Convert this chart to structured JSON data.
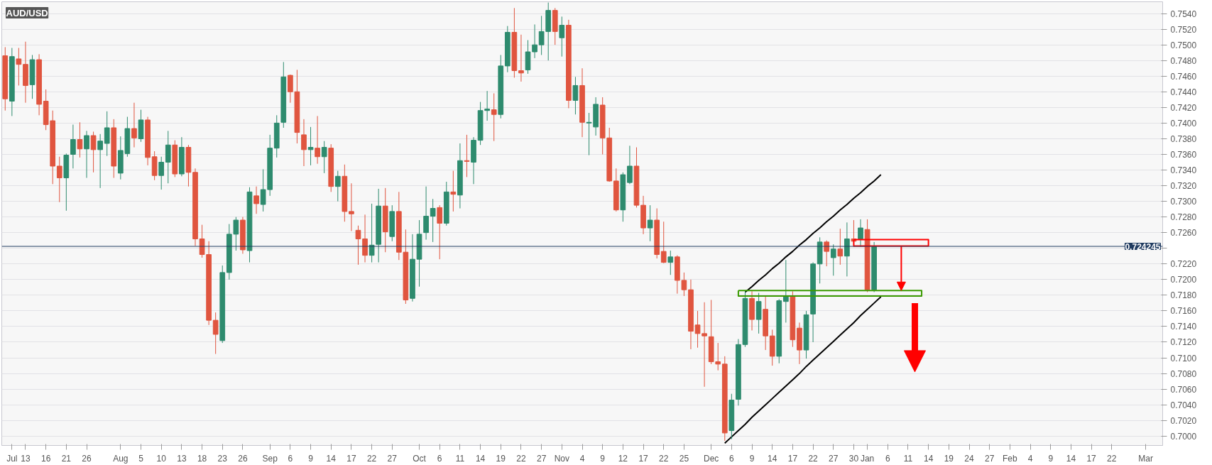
{
  "chart_data": {
    "type": "candlestick",
    "title": "AUD/USD",
    "categories": [
      null,
      "Jul",
      null,
      "13",
      null,
      null,
      "16",
      null,
      null,
      "21",
      null,
      null,
      "26",
      null,
      null,
      null,
      null,
      "Aug",
      null,
      null,
      "5",
      null,
      null,
      "10",
      null,
      null,
      "13",
      null,
      null,
      "18",
      null,
      null,
      "23",
      null,
      null,
      "26",
      null,
      null,
      null,
      "Sep",
      null,
      null,
      "6",
      null,
      null,
      "9",
      null,
      null,
      "14",
      null,
      null,
      "17",
      null,
      null,
      "22",
      null,
      null,
      "27",
      null,
      null,
      null,
      "Oct",
      null,
      null,
      "6",
      null,
      null,
      "11",
      null,
      null,
      "14",
      null,
      null,
      "19",
      null,
      null,
      "22",
      null,
      null,
      "27",
      null,
      null,
      "Nov",
      null,
      null,
      "4",
      null,
      null,
      "9",
      null,
      null,
      "12",
      null,
      null,
      "17",
      null,
      null,
      "22",
      null,
      null,
      "25",
      null,
      null,
      null,
      "Dec",
      null,
      null,
      "6",
      null,
      null,
      "9",
      null,
      null,
      "14",
      null,
      null,
      "17",
      null,
      null,
      "22",
      null,
      null,
      "27",
      null,
      null,
      "30",
      null,
      "Jan",
      null,
      null,
      "6",
      null,
      null,
      "11",
      null,
      null,
      "14",
      null,
      null,
      "19",
      null,
      null,
      "24",
      null,
      null,
      "27",
      null,
      null,
      "Feb",
      null,
      null,
      "4",
      null,
      null,
      "9",
      null,
      null,
      "14",
      null,
      null,
      "17",
      null,
      null,
      "22",
      null,
      null,
      null,
      null,
      "Mar",
      null,
      null
    ],
    "ohlc": [
      [
        0.7486,
        0.7497,
        0.7416,
        0.7431
      ],
      [
        0.7428,
        0.7496,
        0.7409,
        0.7485
      ],
      [
        0.7482,
        0.7496,
        0.7448,
        0.7475
      ],
      [
        0.7475,
        0.7504,
        0.7426,
        0.7448
      ],
      [
        0.7449,
        0.7487,
        0.7431,
        0.7481
      ],
      [
        0.7481,
        0.7488,
        0.741,
        0.7424
      ],
      [
        0.7428,
        0.7443,
        0.7391,
        0.7398
      ],
      [
        0.7403,
        0.7416,
        0.7322,
        0.7345
      ],
      [
        0.7345,
        0.7357,
        0.7299,
        0.733
      ],
      [
        0.733,
        0.7361,
        0.7288,
        0.7359
      ],
      [
        0.736,
        0.7398,
        0.7342,
        0.7379
      ],
      [
        0.7379,
        0.7401,
        0.7356,
        0.7367
      ],
      [
        0.7367,
        0.739,
        0.733,
        0.7384
      ],
      [
        0.7384,
        0.7389,
        0.7337,
        0.7366
      ],
      [
        0.7366,
        0.7386,
        0.7317,
        0.7377
      ],
      [
        0.7374,
        0.7415,
        0.7358,
        0.7394
      ],
      [
        0.7394,
        0.7405,
        0.733,
        0.7345
      ],
      [
        0.7336,
        0.7383,
        0.7328,
        0.7365
      ],
      [
        0.7361,
        0.7408,
        0.7357,
        0.7393
      ],
      [
        0.7393,
        0.7426,
        0.7369,
        0.7381
      ],
      [
        0.738,
        0.7417,
        0.7376,
        0.7404
      ],
      [
        0.7404,
        0.7408,
        0.7346,
        0.7356
      ],
      [
        0.7357,
        0.7364,
        0.7327,
        0.7333
      ],
      [
        0.7333,
        0.7357,
        0.7315,
        0.735
      ],
      [
        0.735,
        0.739,
        0.7323,
        0.7372
      ],
      [
        0.7372,
        0.7378,
        0.7331,
        0.7335
      ],
      [
        0.7335,
        0.7382,
        0.7332,
        0.7369
      ],
      [
        0.7369,
        0.7372,
        0.7319,
        0.7337
      ],
      [
        0.7337,
        0.7342,
        0.7243,
        0.7252
      ],
      [
        0.7252,
        0.727,
        0.7228,
        0.7232
      ],
      [
        0.7232,
        0.7249,
        0.7142,
        0.7148
      ],
      [
        0.7148,
        0.7158,
        0.7105,
        0.713
      ],
      [
        0.7122,
        0.7218,
        0.7119,
        0.7209
      ],
      [
        0.7209,
        0.7271,
        0.72,
        0.7258
      ],
      [
        0.7258,
        0.728,
        0.7237,
        0.7276
      ],
      [
        0.7276,
        0.728,
        0.7233,
        0.7238
      ],
      [
        0.7237,
        0.7318,
        0.7222,
        0.7312
      ],
      [
        0.7307,
        0.7319,
        0.7284,
        0.7297
      ],
      [
        0.7296,
        0.7341,
        0.7287,
        0.7315
      ],
      [
        0.7315,
        0.7385,
        0.7307,
        0.7368
      ],
      [
        0.7368,
        0.741,
        0.7356,
        0.74
      ],
      [
        0.7401,
        0.7478,
        0.7394,
        0.7459
      ],
      [
        0.7461,
        0.7462,
        0.7426,
        0.744
      ],
      [
        0.744,
        0.7468,
        0.7374,
        0.7388
      ],
      [
        0.7385,
        0.7405,
        0.7345,
        0.7366
      ],
      [
        0.7366,
        0.7395,
        0.7346,
        0.7369
      ],
      [
        0.7368,
        0.7409,
        0.7348,
        0.7357
      ],
      [
        0.7357,
        0.7377,
        0.7336,
        0.7369
      ],
      [
        0.7368,
        0.7373,
        0.7312,
        0.7319
      ],
      [
        0.7319,
        0.7339,
        0.73,
        0.7332
      ],
      [
        0.7332,
        0.7347,
        0.7274,
        0.7287
      ],
      [
        0.7287,
        0.7323,
        0.7262,
        0.7284
      ],
      [
        0.7263,
        0.7269,
        0.7219,
        0.7252
      ],
      [
        0.7252,
        0.7283,
        0.7222,
        0.7231
      ],
      [
        0.7231,
        0.7297,
        0.7222,
        0.7244
      ],
      [
        0.7245,
        0.7316,
        0.7222,
        0.7294
      ],
      [
        0.7294,
        0.7317,
        0.7235,
        0.7261
      ],
      [
        0.7255,
        0.7295,
        0.7249,
        0.7287
      ],
      [
        0.7287,
        0.7312,
        0.7225,
        0.7235
      ],
      [
        0.7235,
        0.7264,
        0.7169,
        0.7174
      ],
      [
        0.7176,
        0.7258,
        0.7172,
        0.7226
      ],
      [
        0.7226,
        0.7276,
        0.7191,
        0.7258
      ],
      [
        0.726,
        0.7319,
        0.7251,
        0.7281
      ],
      [
        0.7281,
        0.7303,
        0.7248,
        0.7291
      ],
      [
        0.7292,
        0.7295,
        0.7226,
        0.7272
      ],
      [
        0.7272,
        0.7325,
        0.7269,
        0.7312
      ],
      [
        0.7312,
        0.7339,
        0.7287,
        0.7309
      ],
      [
        0.7308,
        0.7374,
        0.7291,
        0.7352
      ],
      [
        0.7352,
        0.7385,
        0.7331,
        0.7351
      ],
      [
        0.735,
        0.7382,
        0.7322,
        0.7378
      ],
      [
        0.7378,
        0.7427,
        0.7372,
        0.7416
      ],
      [
        0.7416,
        0.7441,
        0.7403,
        0.7418
      ],
      [
        0.7417,
        0.7438,
        0.7377,
        0.7411
      ],
      [
        0.7411,
        0.7487,
        0.7406,
        0.7473
      ],
      [
        0.7473,
        0.7524,
        0.7465,
        0.7516
      ],
      [
        0.7516,
        0.7547,
        0.7458,
        0.7467
      ],
      [
        0.7467,
        0.7513,
        0.7453,
        0.7464
      ],
      [
        0.7468,
        0.7506,
        0.7463,
        0.7491
      ],
      [
        0.7491,
        0.7526,
        0.7483,
        0.75
      ],
      [
        0.75,
        0.7537,
        0.7487,
        0.7517
      ],
      [
        0.7517,
        0.7554,
        0.748,
        0.7544
      ],
      [
        0.7544,
        0.7547,
        0.75,
        0.7517
      ],
      [
        0.7509,
        0.7536,
        0.7485,
        0.7525
      ],
      [
        0.7525,
        0.7532,
        0.7419,
        0.7429
      ],
      [
        0.7429,
        0.7459,
        0.7411,
        0.7448
      ],
      [
        0.7448,
        0.747,
        0.7382,
        0.7401
      ],
      [
        0.74,
        0.7413,
        0.7359,
        0.7401
      ],
      [
        0.7395,
        0.7433,
        0.7384,
        0.7424
      ],
      [
        0.7423,
        0.7433,
        0.736,
        0.7381
      ],
      [
        0.7381,
        0.7394,
        0.7325,
        0.7326
      ],
      [
        0.7326,
        0.7342,
        0.7287,
        0.7289
      ],
      [
        0.7289,
        0.7337,
        0.7274,
        0.7334
      ],
      [
        0.7324,
        0.7371,
        0.7322,
        0.7345
      ],
      [
        0.7345,
        0.7369,
        0.7292,
        0.7295
      ],
      [
        0.7295,
        0.7307,
        0.7258,
        0.7266
      ],
      [
        0.7266,
        0.7295,
        0.7249,
        0.7276
      ],
      [
        0.7276,
        0.7291,
        0.7227,
        0.7232
      ],
      [
        0.7236,
        0.7274,
        0.7221,
        0.7222
      ],
      [
        0.7222,
        0.7237,
        0.7206,
        0.7229
      ],
      [
        0.7229,
        0.7231,
        0.7182,
        0.7199
      ],
      [
        0.7199,
        0.7209,
        0.7179,
        0.7187
      ],
      [
        0.7187,
        0.72,
        0.7111,
        0.7134
      ],
      [
        0.7142,
        0.716,
        0.7113,
        0.7131
      ],
      [
        0.7131,
        0.7171,
        0.7063,
        0.7128
      ],
      [
        0.7127,
        0.7174,
        0.7092,
        0.7095
      ],
      [
        0.7095,
        0.7119,
        0.7084,
        0.7092
      ],
      [
        0.7092,
        0.7102,
        0.6994,
        0.7004
      ],
      [
        0.7007,
        0.7054,
        0.6996,
        0.7046
      ],
      [
        0.7047,
        0.7124,
        0.7039,
        0.7117
      ],
      [
        0.7117,
        0.7185,
        0.7114,
        0.7176
      ],
      [
        0.7176,
        0.7185,
        0.7135,
        0.7149
      ],
      [
        0.7149,
        0.7183,
        0.7131,
        0.7172
      ],
      [
        0.7162,
        0.7178,
        0.711,
        0.7128
      ],
      [
        0.7128,
        0.7136,
        0.709,
        0.7102
      ],
      [
        0.7102,
        0.7175,
        0.7093,
        0.7173
      ],
      [
        0.7172,
        0.7225,
        0.7145,
        0.7178
      ],
      [
        0.7178,
        0.7185,
        0.7114,
        0.7123
      ],
      [
        0.7138,
        0.7145,
        0.7092,
        0.711
      ],
      [
        0.711,
        0.716,
        0.7099,
        0.7155
      ],
      [
        0.7156,
        0.7222,
        0.712,
        0.722
      ],
      [
        0.722,
        0.7254,
        0.7195,
        0.7248
      ],
      [
        0.7248,
        0.725,
        0.7217,
        0.7236
      ],
      [
        0.7228,
        0.7245,
        0.7205,
        0.7239
      ],
      [
        0.7239,
        0.7265,
        0.7219,
        0.723
      ],
      [
        0.723,
        0.7273,
        0.7204,
        0.7252
      ],
      [
        0.7252,
        0.7276,
        0.7242,
        0.7249
      ],
      [
        0.7252,
        0.7277,
        0.7242,
        0.7266
      ],
      [
        0.7264,
        0.7277,
        0.7184,
        0.7187
      ],
      [
        0.7187,
        0.7248,
        0.7184,
        0.7242
      ],
      null,
      null,
      null,
      null,
      null,
      null,
      null,
      null,
      null,
      null,
      null,
      null,
      null,
      null,
      null,
      null,
      null,
      null,
      null,
      null,
      null,
      null,
      null,
      null,
      null,
      null,
      null,
      null,
      null,
      null,
      null,
      null,
      null,
      null,
      null,
      null,
      null,
      null,
      null,
      null,
      null,
      null
    ],
    "colors": [
      "#e0553f",
      "#2e8b6e",
      "#e0553f",
      "#e0553f",
      "#2e8b6e",
      "#e0553f",
      "#e0553f",
      "#e0553f",
      "#e0553f",
      "#2e8b6e",
      "#2e8b6e",
      "#e0553f",
      "#2e8b6e",
      "#e0553f",
      "#2e8b6e",
      "#2e8b6e",
      "#e0553f",
      "#2e8b6e",
      "#2e8b6e",
      "#e0553f",
      "#2e8b6e",
      "#e0553f",
      "#e0553f",
      "#2e8b6e",
      "#2e8b6e",
      "#e0553f",
      "#2e8b6e",
      "#e0553f",
      "#e0553f",
      "#e0553f",
      "#e0553f",
      "#e0553f",
      "#2e8b6e",
      "#2e8b6e",
      "#2e8b6e",
      "#e0553f",
      "#2e8b6e",
      "#e0553f",
      "#2e8b6e",
      "#2e8b6e",
      "#2e8b6e",
      "#2e8b6e",
      "#e0553f",
      "#e0553f",
      "#e0553f",
      "#2e8b6e",
      "#e0553f",
      "#2e8b6e",
      "#e0553f",
      "#2e8b6e",
      "#e0553f",
      "#e0553f",
      "#e0553f",
      "#e0553f",
      "#2e8b6e",
      "#2e8b6e",
      "#e0553f",
      "#2e8b6e",
      "#e0553f",
      "#e0553f",
      "#2e8b6e",
      "#2e8b6e",
      "#2e8b6e",
      "#2e8b6e",
      "#e0553f",
      "#2e8b6e",
      "#e0553f",
      "#2e8b6e",
      "#e0553f",
      "#2e8b6e",
      "#2e8b6e",
      "#2e8b6e",
      "#e0553f",
      "#2e8b6e",
      "#2e8b6e",
      "#e0553f",
      "#e0553f",
      "#2e8b6e",
      "#2e8b6e",
      "#2e8b6e",
      "#2e8b6e",
      "#e0553f",
      "#2e8b6e",
      "#e0553f",
      "#2e8b6e",
      "#e0553f",
      "#2e8b6e",
      "#2e8b6e",
      "#e0553f",
      "#e0553f",
      "#e0553f",
      "#2e8b6e",
      "#2e8b6e",
      "#e0553f",
      "#e0553f",
      "#2e8b6e",
      "#e0553f",
      "#e0553f",
      "#2e8b6e",
      "#e0553f",
      "#e0553f",
      "#e0553f",
      "#e0553f",
      "#e0553f",
      "#e0553f",
      "#e0553f",
      "#e0553f",
      "#2e8b6e",
      "#2e8b6e",
      "#2e8b6e",
      "#e0553f",
      "#2e8b6e",
      "#e0553f",
      "#e0553f",
      "#2e8b6e",
      "#2e8b6e",
      "#e0553f",
      "#e0553f",
      "#2e8b6e",
      "#2e8b6e",
      "#2e8b6e",
      "#e0553f",
      "#2e8b6e",
      "#e0553f",
      "#2e8b6e",
      "#e0553f",
      "#2e8b6e",
      "#e0553f",
      "#2e8b6e",
      null,
      null,
      null,
      null,
      null,
      null,
      null,
      null,
      null,
      null,
      null,
      null,
      null,
      null,
      null,
      null,
      null,
      null,
      null,
      null,
      null,
      null,
      null,
      null,
      null,
      null,
      null,
      null,
      null,
      null,
      null,
      null,
      null,
      null,
      null,
      null,
      null,
      null,
      null,
      null,
      null,
      null
    ],
    "series": [
      {
        "type": "line",
        "color": "#000000",
        "values": [
          null,
          null,
          null,
          null,
          null,
          null,
          null,
          null,
          null,
          null,
          null,
          null,
          null,
          null,
          null,
          null,
          null,
          null,
          null,
          null,
          null,
          null,
          null,
          null,
          null,
          null,
          null,
          null,
          null,
          null,
          null,
          null,
          null,
          null,
          null,
          null,
          null,
          null,
          null,
          null,
          null,
          null,
          null,
          null,
          null,
          null,
          null,
          null,
          null,
          null,
          null,
          null,
          null,
          null,
          null,
          null,
          null,
          null,
          null,
          null,
          null,
          null,
          null,
          null,
          null,
          null,
          null,
          null,
          null,
          null,
          null,
          null,
          null,
          null,
          null,
          null,
          null,
          null,
          null,
          null,
          null,
          null,
          null,
          null,
          null,
          null,
          null,
          null,
          null,
          null,
          null,
          null,
          null,
          null,
          null,
          null,
          null,
          null,
          null,
          null,
          null,
          null,
          null,
          null,
          null,
          null,
          null,
          null,
          null,
          0.7184,
          0.7191,
          0.7199,
          0.7206,
          0.7214,
          0.7221,
          0.7229,
          0.7236,
          0.7244,
          0.7251,
          0.7259,
          0.7266,
          0.7274,
          0.7281,
          0.7289,
          0.7296,
          0.7304,
          0.7311,
          0.7319,
          0.7326,
          0.7334,
          null,
          null,
          null,
          null,
          null,
          null,
          null,
          null,
          null,
          null,
          null,
          null,
          null,
          null,
          null,
          null,
          null,
          null,
          null,
          null,
          null,
          null,
          null,
          null,
          null,
          null,
          null,
          null,
          null,
          null,
          null,
          null,
          null,
          null,
          null,
          null,
          null,
          null,
          null,
          null,
          null
        ]
      },
      {
        "type": "line",
        "color": "#000000",
        "values": [
          null,
          null,
          null,
          null,
          null,
          null,
          null,
          null,
          null,
          null,
          null,
          null,
          null,
          null,
          null,
          null,
          null,
          null,
          null,
          null,
          null,
          null,
          null,
          null,
          null,
          null,
          null,
          null,
          null,
          null,
          null,
          null,
          null,
          null,
          null,
          null,
          null,
          null,
          null,
          null,
          null,
          null,
          null,
          null,
          null,
          null,
          null,
          null,
          null,
          null,
          null,
          null,
          null,
          null,
          null,
          null,
          null,
          null,
          null,
          null,
          null,
          null,
          null,
          null,
          null,
          null,
          null,
          null,
          null,
          null,
          null,
          null,
          null,
          null,
          null,
          null,
          null,
          null,
          null,
          null,
          null,
          null,
          null,
          null,
          null,
          null,
          null,
          null,
          null,
          null,
          null,
          null,
          null,
          null,
          null,
          null,
          null,
          null,
          null,
          null,
          null,
          null,
          null,
          null,
          null,
          null,
          0.6991,
          0.6999,
          0.7007,
          0.7015,
          0.7024,
          0.7032,
          0.704,
          0.7048,
          0.7056,
          0.7064,
          0.7072,
          0.708,
          0.7089,
          0.7097,
          0.7105,
          0.7113,
          0.7121,
          0.7129,
          0.7137,
          0.7145,
          0.7154,
          0.7162,
          0.717,
          0.7178,
          null,
          null,
          null,
          null,
          null,
          null,
          null,
          null,
          null,
          null,
          null,
          null,
          null,
          null,
          null,
          null,
          null,
          null,
          null,
          null,
          null,
          null,
          null,
          null,
          null,
          null,
          null,
          null,
          null,
          null,
          null,
          null,
          null,
          null,
          null,
          null,
          null,
          null,
          null,
          null,
          null
        ]
      }
    ],
    "ref_lines": [
      {
        "axis": "y",
        "value": 0.724245,
        "label": "0.724245",
        "color": "#1f3a5f"
      }
    ],
    "ylim": [
      0.6988,
      0.7555
    ],
    "yticks": [
      {
        "value": 0.7,
        "label": "0.7000"
      },
      {
        "value": 0.702,
        "label": "0.7020"
      },
      {
        "value": 0.704,
        "label": "0.7040"
      },
      {
        "value": 0.706,
        "label": "0.7060"
      },
      {
        "value": 0.708,
        "label": "0.7080"
      },
      {
        "value": 0.71,
        "label": "0.7100"
      },
      {
        "value": 0.712,
        "label": "0.7120"
      },
      {
        "value": 0.714,
        "label": "0.7140"
      },
      {
        "value": 0.716,
        "label": "0.7160"
      },
      {
        "value": 0.718,
        "label": "0.7180"
      },
      {
        "value": 0.72,
        "label": "0.7200"
      },
      {
        "value": 0.722,
        "label": "0.7220"
      },
      {
        "value": 0.724,
        "label": null
      },
      {
        "value": 0.726,
        "label": "0.7260"
      },
      {
        "value": 0.728,
        "label": "0.7280"
      },
      {
        "value": 0.73,
        "label": "0.7300"
      },
      {
        "value": 0.732,
        "label": "0.7320"
      },
      {
        "value": 0.734,
        "label": "0.7340"
      },
      {
        "value": 0.736,
        "label": "0.7360"
      },
      {
        "value": 0.738,
        "label": "0.7380"
      },
      {
        "value": 0.74,
        "label": "0.7400"
      },
      {
        "value": 0.742,
        "label": "0.7420"
      },
      {
        "value": 0.744,
        "label": "0.7440"
      },
      {
        "value": 0.746,
        "label": "0.7460"
      },
      {
        "value": 0.748,
        "label": "0.7480"
      },
      {
        "value": 0.75,
        "label": "0.7500"
      },
      {
        "value": 0.752,
        "label": "0.7520"
      },
      {
        "value": 0.754,
        "label": "0.7540"
      }
    ],
    "grid": "y"
  }
}
